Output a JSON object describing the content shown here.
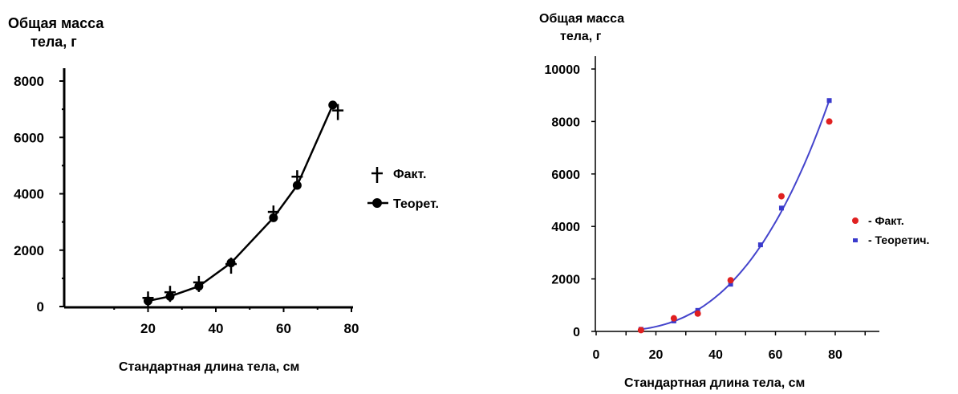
{
  "chart_data": [
    {
      "type": "line",
      "ylabel": [
        "Общая масса",
        "тела, г"
      ],
      "xlabel": "Стандартная длина тела, см",
      "xlim": [
        0,
        80
      ],
      "ylim": [
        0,
        8000
      ],
      "x_ticks": [
        20,
        40,
        60,
        80
      ],
      "y_ticks": [
        0,
        2000,
        4000,
        6000,
        8000
      ],
      "grid": false,
      "legend_position": "right",
      "series": [
        {
          "name": "Факт.",
          "marker": "cross",
          "x": [
            20,
            26.5,
            35,
            44.5,
            57,
            64,
            76
          ],
          "y": [
            250,
            450,
            800,
            1450,
            3300,
            4550,
            6900
          ]
        },
        {
          "name": "Теорет.",
          "marker": "circle",
          "line": true,
          "x": [
            20,
            26.5,
            35,
            44.5,
            57,
            64,
            74.5
          ],
          "y": [
            200,
            360,
            720,
            1550,
            3150,
            4300,
            7150
          ]
        }
      ]
    },
    {
      "type": "scatter",
      "ylabel": [
        "Общая масса",
        "тела, г"
      ],
      "xlabel": "Стандартная длина тела, см",
      "xlim": [
        0,
        95
      ],
      "ylim": [
        0,
        10000
      ],
      "x_ticks": [
        0,
        20,
        40,
        60,
        80
      ],
      "y_ticks": [
        0,
        2000,
        4000,
        6000,
        8000,
        10000
      ],
      "grid": false,
      "legend_position": "right",
      "series": [
        {
          "name": "- Факт.",
          "color": "#e02020",
          "marker": "circle",
          "x": [
            15,
            26,
            34,
            45,
            62,
            78
          ],
          "y": [
            50,
            500,
            680,
            1950,
            5150,
            8000
          ]
        },
        {
          "name": "- Теоретич.",
          "color": "#3a3acc",
          "marker": "square",
          "line": true,
          "x": [
            15,
            26,
            34,
            45,
            55,
            62,
            78
          ],
          "y": [
            80,
            400,
            800,
            1800,
            3300,
            4700,
            8800
          ]
        }
      ]
    }
  ]
}
